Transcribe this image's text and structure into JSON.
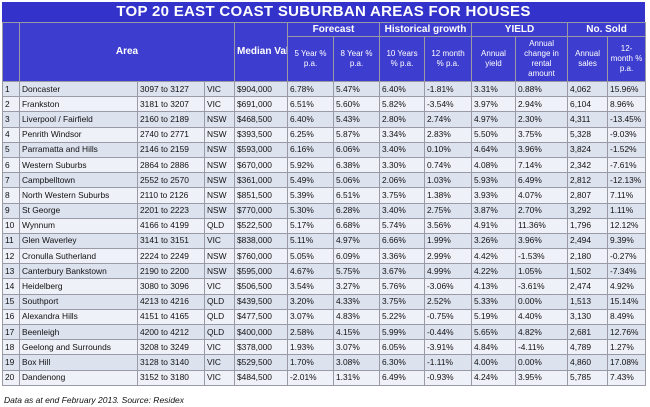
{
  "title": "TOP 20 EAST COAST SUBURBAN AREAS FOR HOUSES",
  "headers": {
    "area": "Area",
    "median_value": "Median Value",
    "forecast": "Forecast",
    "historical": "Historical growth",
    "yield": "YIELD",
    "sold": "No. Sold",
    "five_year": "5 Year % p.a.",
    "eight_year": "8 Year % p.a.",
    "ten_years": "10 Years % p.a.",
    "twelve_month": "12 month % p.a.",
    "annual_yield": "Annual yield",
    "annual_change": "Annual change in rental amount",
    "annual_sales": "Annual sales",
    "twelve_month_sold": "12-month % p.a."
  },
  "rows": [
    {
      "rank": "1",
      "area": "Doncaster",
      "postcodes": "3097 to 3127",
      "state": "VIC",
      "median": "$904,000",
      "f5": "6.78%",
      "f8": "5.47%",
      "h10": "6.40%",
      "h12": "-1.81%",
      "yield": "3.31%",
      "rent": "0.88%",
      "sales": "4,062",
      "sold12": "15.96%"
    },
    {
      "rank": "2",
      "area": "Frankston",
      "postcodes": "3181 to 3207",
      "state": "VIC",
      "median": "$691,000",
      "f5": "6.51%",
      "f8": "5.60%",
      "h10": "5.82%",
      "h12": "-3.54%",
      "yield": "3.97%",
      "rent": "2.94%",
      "sales": "6,104",
      "sold12": "8.96%"
    },
    {
      "rank": "3",
      "area": "Liverpool / Fairfield",
      "postcodes": "2160 to 2189",
      "state": "NSW",
      "median": "$468,500",
      "f5": "6.40%",
      "f8": "5.43%",
      "h10": "2.80%",
      "h12": "2.74%",
      "yield": "4.97%",
      "rent": "2.30%",
      "sales": "4,311",
      "sold12": "-13.45%"
    },
    {
      "rank": "4",
      "area": "Penrith Windsor",
      "postcodes": "2740 to 2771",
      "state": "NSW",
      "median": "$393,500",
      "f5": "6.25%",
      "f8": "5.87%",
      "h10": "3.34%",
      "h12": "2.83%",
      "yield": "5.50%",
      "rent": "3.75%",
      "sales": "5,328",
      "sold12": "-9.03%"
    },
    {
      "rank": "5",
      "area": "Parramatta and Hills",
      "postcodes": "2146 to 2159",
      "state": "NSW",
      "median": "$593,000",
      "f5": "6.16%",
      "f8": "6.06%",
      "h10": "3.40%",
      "h12": "0.10%",
      "yield": "4.64%",
      "rent": "3.96%",
      "sales": "3,824",
      "sold12": "-1.52%"
    },
    {
      "rank": "6",
      "area": "Western Suburbs",
      "postcodes": "2864 to 2886",
      "state": "NSW",
      "median": "$670,000",
      "f5": "5.92%",
      "f8": "6.38%",
      "h10": "3.30%",
      "h12": "0.74%",
      "yield": "4.08%",
      "rent": "7.14%",
      "sales": "2,342",
      "sold12": "-7.61%"
    },
    {
      "rank": "7",
      "area": "Campbelltown",
      "postcodes": "2552 to 2570",
      "state": "NSW",
      "median": "$361,000",
      "f5": "5.49%",
      "f8": "5.06%",
      "h10": "2.06%",
      "h12": "1.03%",
      "yield": "5.93%",
      "rent": "6.49%",
      "sales": "2,812",
      "sold12": "-12.13%"
    },
    {
      "rank": "8",
      "area": "North Western Suburbs",
      "postcodes": "2110 to 2126",
      "state": "NSW",
      "median": "$851,500",
      "f5": "5.39%",
      "f8": "6.51%",
      "h10": "3.75%",
      "h12": "1.38%",
      "yield": "3.93%",
      "rent": "4.07%",
      "sales": "2,807",
      "sold12": "7.11%"
    },
    {
      "rank": "9",
      "area": "St George",
      "postcodes": "2201 to 2223",
      "state": "NSW",
      "median": "$770,000",
      "f5": "5.30%",
      "f8": "6.28%",
      "h10": "3.40%",
      "h12": "2.75%",
      "yield": "3.87%",
      "rent": "2.70%",
      "sales": "3,292",
      "sold12": "1.11%"
    },
    {
      "rank": "10",
      "area": "Wynnum",
      "postcodes": "4166 to 4199",
      "state": "QLD",
      "median": "$522,500",
      "f5": "5.17%",
      "f8": "6.68%",
      "h10": "5.74%",
      "h12": "3.56%",
      "yield": "4.91%",
      "rent": "11.36%",
      "sales": "1,796",
      "sold12": "12.12%"
    },
    {
      "rank": "11",
      "area": "Glen Waverley",
      "postcodes": "3141 to 3151",
      "state": "VIC",
      "median": "$838,000",
      "f5": "5.11%",
      "f8": "4.97%",
      "h10": "6.66%",
      "h12": "1.99%",
      "yield": "3.26%",
      "rent": "3.96%",
      "sales": "2,494",
      "sold12": "9.39%"
    },
    {
      "rank": "12",
      "area": "Cronulla Sutherland",
      "postcodes": "2224 to 2249",
      "state": "NSW",
      "median": "$760,000",
      "f5": "5.05%",
      "f8": "6.09%",
      "h10": "3.36%",
      "h12": "2.99%",
      "yield": "4.42%",
      "rent": "-1.53%",
      "sales": "2,180",
      "sold12": "-0.27%"
    },
    {
      "rank": "13",
      "area": "Canterbury Bankstown",
      "postcodes": "2190 to 2200",
      "state": "NSW",
      "median": "$595,000",
      "f5": "4.67%",
      "f8": "5.75%",
      "h10": "3.67%",
      "h12": "4.99%",
      "yield": "4.22%",
      "rent": "1.05%",
      "sales": "1,502",
      "sold12": "-7.34%"
    },
    {
      "rank": "14",
      "area": "Heidelberg",
      "postcodes": "3080 to 3096",
      "state": "VIC",
      "median": "$506,500",
      "f5": "3.54%",
      "f8": "3.27%",
      "h10": "5.76%",
      "h12": "-3.06%",
      "yield": "4.13%",
      "rent": "-3.61%",
      "sales": "2,474",
      "sold12": "4.92%"
    },
    {
      "rank": "15",
      "area": "Southport",
      "postcodes": "4213 to 4216",
      "state": "QLD",
      "median": "$439,500",
      "f5": "3.20%",
      "f8": "4.33%",
      "h10": "3.75%",
      "h12": "2.52%",
      "yield": "5.33%",
      "rent": "0.00%",
      "sales": "1,513",
      "sold12": "15.14%"
    },
    {
      "rank": "16",
      "area": "Alexandra Hills",
      "postcodes": "4151 to 4165",
      "state": "QLD",
      "median": "$477,500",
      "f5": "3.07%",
      "f8": "4.83%",
      "h10": "5.22%",
      "h12": "-0.75%",
      "yield": "5.19%",
      "rent": "4.40%",
      "sales": "3,130",
      "sold12": "8.49%"
    },
    {
      "rank": "17",
      "area": "Beenleigh",
      "postcodes": "4200 to 4212",
      "state": "QLD",
      "median": "$400,000",
      "f5": "2.58%",
      "f8": "4.15%",
      "h10": "5.99%",
      "h12": "-0.44%",
      "yield": "5.65%",
      "rent": "4.82%",
      "sales": "2,681",
      "sold12": "12.76%"
    },
    {
      "rank": "18",
      "area": "Geelong and Surrounds",
      "postcodes": "3208 to 3249",
      "state": "VIC",
      "median": "$378,000",
      "f5": "1.93%",
      "f8": "3.07%",
      "h10": "6.05%",
      "h12": "-3.91%",
      "yield": "4.84%",
      "rent": "-4.11%",
      "sales": "4,789",
      "sold12": "1.27%"
    },
    {
      "rank": "19",
      "area": "Box Hill",
      "postcodes": "3128 to 3140",
      "state": "VIC",
      "median": "$529,500",
      "f5": "1.70%",
      "f8": "3.08%",
      "h10": "6.30%",
      "h12": "-1.11%",
      "yield": "4.00%",
      "rent": "0.00%",
      "sales": "4,860",
      "sold12": "17.08%"
    },
    {
      "rank": "20",
      "area": "Dandenong",
      "postcodes": "3152 to 3180",
      "state": "VIC",
      "median": "$484,500",
      "f5": "-2.01%",
      "f8": "1.31%",
      "h10": "6.49%",
      "h12": "-0.93%",
      "yield": "4.24%",
      "rent": "3.95%",
      "sales": "5,785",
      "sold12": "7.43%"
    }
  ],
  "footnote": "Data as at end February 2013. Source: Residex",
  "colors": {
    "header_bg": "#3d3dcf",
    "title_bg": "#3333cc",
    "row_odd": "#dde2ef",
    "row_even": "#eef1f8"
  }
}
